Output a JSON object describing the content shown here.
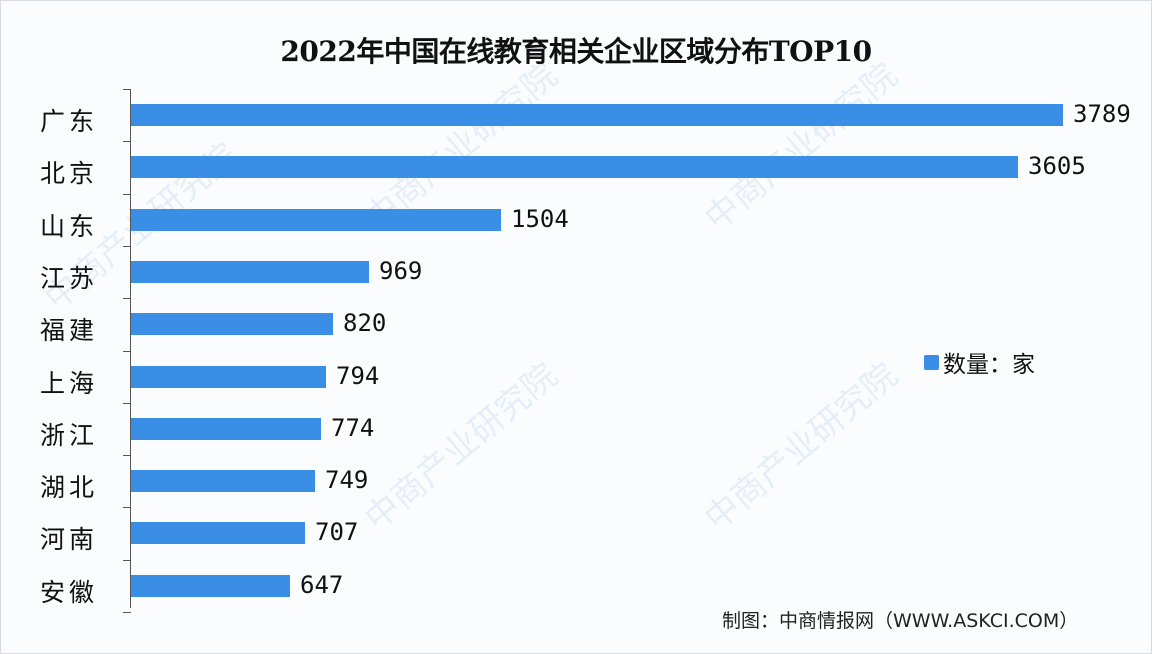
{
  "chart_data": {
    "type": "bar",
    "orientation": "horizontal",
    "title": "2022年中国在线教育相关企业区域分布TOP10",
    "categories": [
      "广东",
      "北京",
      "山东",
      "江苏",
      "福建",
      "上海",
      "浙江",
      "湖北",
      "河南",
      "安徽"
    ],
    "values": [
      3789,
      3605,
      1504,
      969,
      820,
      794,
      774,
      749,
      707,
      647
    ],
    "series": [
      {
        "name": "数量：家",
        "values": [
          3789,
          3605,
          1504,
          969,
          820,
          794,
          774,
          749,
          707,
          647
        ]
      }
    ],
    "xlabel": "",
    "ylabel": "",
    "xlim": [
      0,
      3789
    ],
    "grid": false,
    "legend_position": "right",
    "bar_color": "#3a8ee6",
    "data_labels": true
  },
  "legend": {
    "label": "数量：家"
  },
  "source": "制图：中商情报网（WWW.ASKCI.COM）",
  "watermark": "中商产业研究院"
}
